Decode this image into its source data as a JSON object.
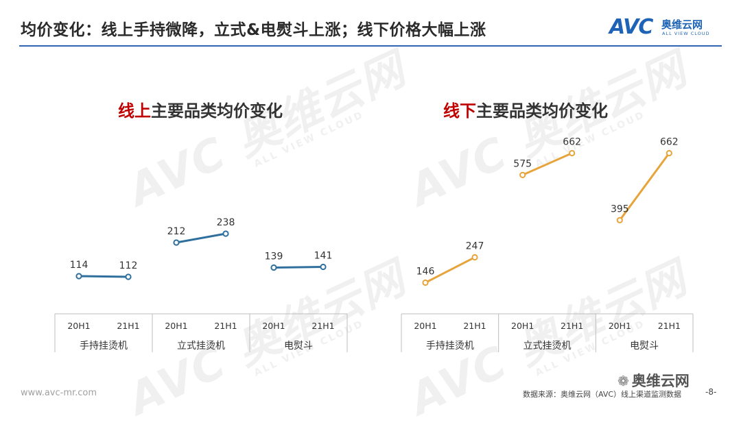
{
  "header": {
    "title": "均价变化：线上手持微降，立式&电熨斗上涨；线下价格大幅上涨",
    "logo_mark": "AVC",
    "logo_cn": "奥维云网",
    "logo_en": "ALL VIEW CLOUD",
    "accent": "#2f64b0"
  },
  "watermark": {
    "cn": "奥维云网",
    "en": "ALL VIEW CLOUD",
    "mark": "AVC"
  },
  "chart_data": [
    {
      "type": "line",
      "title_highlight": "线上",
      "title_rest": "主要品类均价变化",
      "color": "#2e6f9e",
      "highlight_color": "#c00000",
      "groups": [
        {
          "name": "手持挂烫机",
          "x": [
            "20H1",
            "21H1"
          ],
          "values": [
            114,
            112
          ]
        },
        {
          "name": "立式挂烫机",
          "x": [
            "20H1",
            "21H1"
          ],
          "values": [
            212,
            238
          ]
        },
        {
          "name": "电熨斗",
          "x": [
            "20H1",
            "21H1"
          ],
          "values": [
            139,
            141
          ]
        }
      ]
    },
    {
      "type": "line",
      "title_highlight": "线下",
      "title_rest": "主要品类均价变化",
      "color": "#e6a43a",
      "highlight_color": "#c00000",
      "groups": [
        {
          "name": "手持挂烫机",
          "x": [
            "20H1",
            "21H1"
          ],
          "values": [
            146,
            247
          ]
        },
        {
          "name": "立式挂烫机",
          "x": [
            "20H1",
            "21H1"
          ],
          "values": [
            575,
            662
          ]
        },
        {
          "name": "电熨斗",
          "x": [
            "20H1",
            "21H1"
          ],
          "values": [
            395,
            662
          ]
        }
      ]
    }
  ],
  "footer": {
    "url": "www.avc-mr.com",
    "source": "数据来源：奥维云网（AVC）线上渠道监测数据",
    "page": "-8-",
    "wechat": "奥维云网",
    "wechat_icon": "wechat-icon"
  }
}
